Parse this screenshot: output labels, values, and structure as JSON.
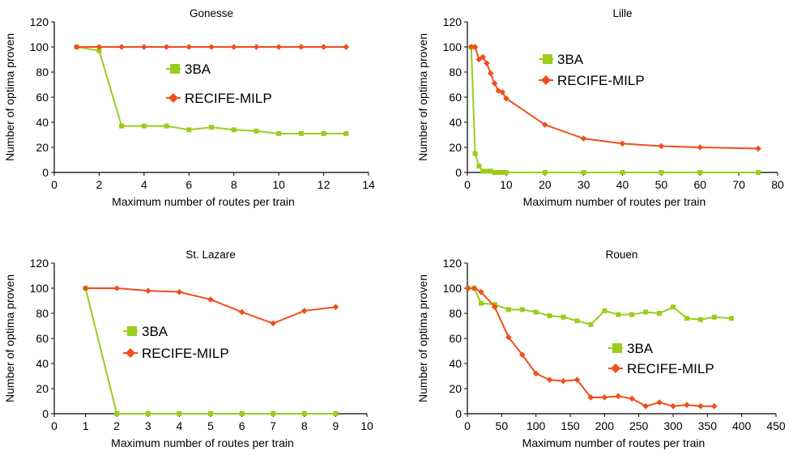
{
  "series_colors": {
    "3BA": "#9ACD1C",
    "RECIFE-MILP": "#F04E1C"
  },
  "chart_data": [
    {
      "type": "line",
      "title": "Gonesse",
      "xlabel": "Maximum number of routes per train",
      "ylabel": "Number of optima proven",
      "xlim": [
        0,
        14
      ],
      "ylim": [
        0,
        120
      ],
      "xticks": [
        0,
        2,
        4,
        6,
        8,
        10,
        12,
        14
      ],
      "yticks": [
        0,
        20,
        40,
        60,
        80,
        100,
        120
      ],
      "legend": [
        "3BA",
        "RECIFE-MILP"
      ],
      "series": [
        {
          "name": "3BA",
          "marker": "square",
          "x": [
            1,
            2,
            3,
            4,
            5,
            6,
            7,
            8,
            9,
            10,
            11,
            12,
            13
          ],
          "y": [
            100,
            97,
            37,
            37,
            37,
            34,
            36,
            34,
            33,
            31,
            31,
            31,
            31
          ]
        },
        {
          "name": "RECIFE-MILP",
          "marker": "diamond",
          "x": [
            1,
            2,
            3,
            4,
            5,
            6,
            7,
            8,
            9,
            10,
            11,
            12,
            13
          ],
          "y": [
            100,
            100,
            100,
            100,
            100,
            100,
            100,
            100,
            100,
            100,
            100,
            100,
            100
          ]
        }
      ]
    },
    {
      "type": "line",
      "title": "Lille",
      "xlabel": "Maximum number of routes per train",
      "ylabel": "Number of optima proven",
      "xlim": [
        0,
        80
      ],
      "ylim": [
        0,
        120
      ],
      "xticks": [
        0,
        10,
        20,
        30,
        40,
        50,
        60,
        70,
        80
      ],
      "yticks": [
        0,
        20,
        40,
        60,
        80,
        100,
        120
      ],
      "legend": [
        "3BA",
        "RECIFE-MILP"
      ],
      "series": [
        {
          "name": "3BA",
          "marker": "square",
          "x": [
            1,
            2,
            3,
            4,
            5,
            6,
            7,
            8,
            9,
            10,
            20,
            30,
            40,
            50,
            60,
            75
          ],
          "y": [
            100,
            15,
            5,
            1,
            1,
            1,
            0,
            0,
            0,
            0,
            0,
            0,
            0,
            0,
            0,
            0
          ]
        },
        {
          "name": "RECIFE-MILP",
          "marker": "diamond",
          "x": [
            1,
            2,
            3,
            4,
            5,
            6,
            7,
            8,
            9,
            10,
            20,
            30,
            40,
            50,
            60,
            75
          ],
          "y": [
            100,
            100,
            90,
            92,
            87,
            79,
            71,
            65,
            64,
            59,
            38,
            27,
            23,
            21,
            20,
            19
          ]
        }
      ]
    },
    {
      "type": "line",
      "title": "St. Lazare",
      "xlabel": "Maximum number of routes per train",
      "ylabel": "Number of optima proven",
      "xlim": [
        0,
        10
      ],
      "ylim": [
        0,
        120
      ],
      "xticks": [
        0,
        1,
        2,
        3,
        4,
        5,
        6,
        7,
        8,
        9,
        10
      ],
      "yticks": [
        0,
        20,
        40,
        60,
        80,
        100,
        120
      ],
      "legend": [
        "3BA",
        "RECIFE-MILP"
      ],
      "series": [
        {
          "name": "3BA",
          "marker": "square",
          "x": [
            1,
            2,
            3,
            4,
            5,
            6,
            7,
            8,
            9
          ],
          "y": [
            100,
            0,
            0,
            0,
            0,
            0,
            0,
            0,
            0
          ]
        },
        {
          "name": "RECIFE-MILP",
          "marker": "diamond",
          "x": [
            1,
            2,
            3,
            4,
            5,
            6,
            7,
            8,
            9
          ],
          "y": [
            100,
            100,
            98,
            97,
            91,
            81,
            72,
            82,
            85
          ]
        }
      ]
    },
    {
      "type": "line",
      "title": "Rouen",
      "xlabel": "Maximum number of routes per train",
      "ylabel": "Number of optima proven",
      "xlim": [
        0,
        450
      ],
      "ylim": [
        0,
        120
      ],
      "xticks": [
        0,
        50,
        100,
        150,
        200,
        250,
        300,
        350,
        400,
        450
      ],
      "yticks": [
        0,
        20,
        40,
        60,
        80,
        100,
        120
      ],
      "legend": [
        "3BA",
        "RECIFE-MILP"
      ],
      "series": [
        {
          "name": "3BA",
          "marker": "square",
          "x": [
            1,
            10,
            20,
            40,
            60,
            80,
            100,
            120,
            140,
            160,
            180,
            200,
            220,
            240,
            260,
            280,
            300,
            320,
            340,
            360,
            385
          ],
          "y": [
            100,
            100,
            88,
            87,
            83,
            83,
            81,
            78,
            77,
            74,
            71,
            82,
            79,
            79,
            81,
            80,
            85,
            76,
            75,
            77,
            76
          ]
        },
        {
          "name": "RECIFE-MILP",
          "marker": "diamond",
          "x": [
            1,
            10,
            20,
            40,
            60,
            80,
            100,
            120,
            140,
            160,
            180,
            200,
            220,
            240,
            260,
            280,
            300,
            320,
            340,
            360
          ],
          "y": [
            100,
            100,
            97,
            85,
            61,
            47,
            32,
            27,
            26,
            27,
            13,
            13,
            14,
            12,
            6,
            9,
            6,
            7,
            6,
            6
          ]
        }
      ]
    }
  ]
}
